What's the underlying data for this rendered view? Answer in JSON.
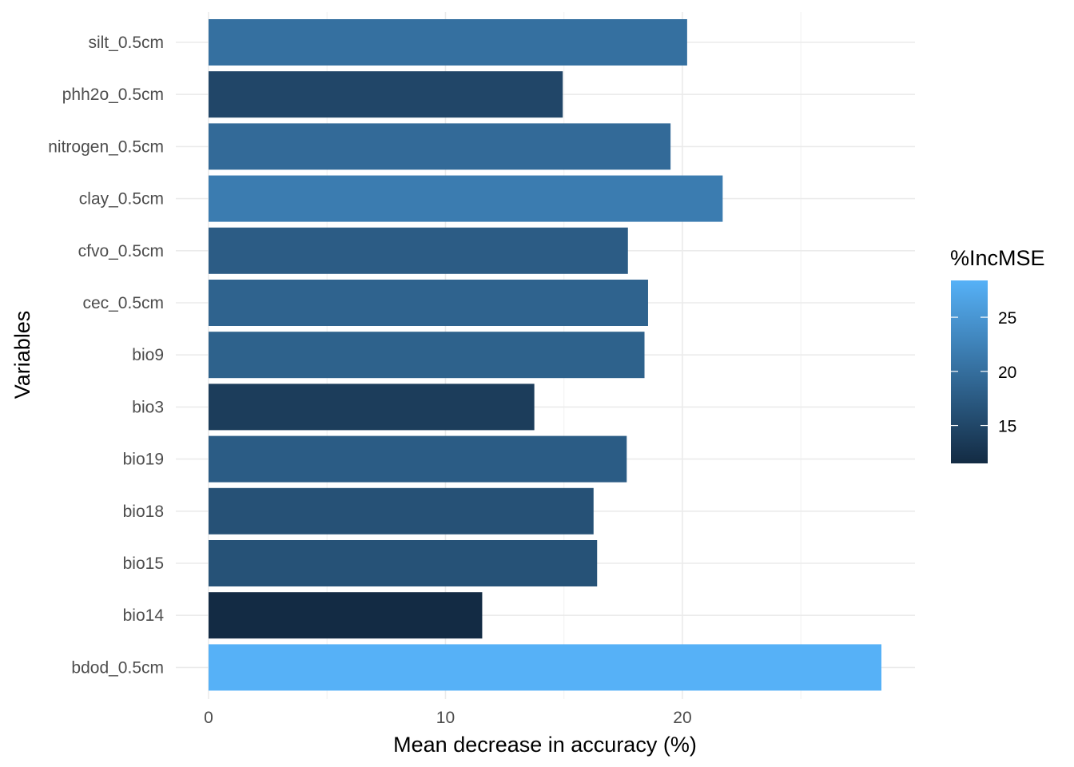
{
  "chart_data": {
    "type": "bar",
    "orientation": "horizontal",
    "xlabel": "Mean decrease in accuracy (%)",
    "ylabel": "Variables",
    "xlim": [
      0,
      29.8
    ],
    "x_ticks": [
      0,
      10,
      20
    ],
    "grid": true,
    "categories": [
      "silt_0.5cm",
      "phh2o_0.5cm",
      "nitrogen_0.5cm",
      "clay_0.5cm",
      "cfvo_0.5cm",
      "cec_0.5cm",
      "bio9",
      "bio3",
      "bio19",
      "bio18",
      "bio15",
      "bio14",
      "bdod_0.5cm"
    ],
    "values": [
      20.2,
      14.95,
      19.5,
      21.7,
      17.7,
      18.55,
      18.4,
      13.75,
      17.65,
      16.25,
      16.4,
      11.55,
      28.4
    ],
    "color_legend": {
      "title": "%IncMSE",
      "min": 11.5,
      "max": 28.4,
      "ticks": [
        15,
        20,
        25
      ],
      "low_color": "#132B43",
      "high_color": "#56B1F7",
      "placement": "right"
    }
  }
}
